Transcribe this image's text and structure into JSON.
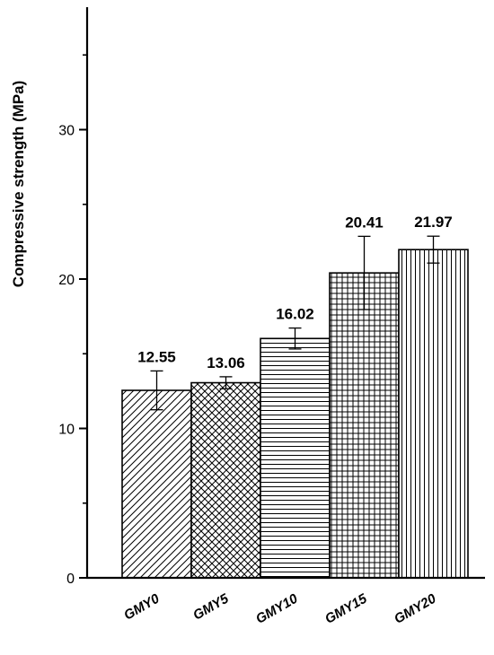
{
  "chart_data": {
    "type": "bar",
    "title": "",
    "xlabel": "",
    "ylabel": "Compressive strength (MPa)",
    "ylim": [
      0,
      38
    ],
    "yticks": [
      0,
      10,
      20,
      30
    ],
    "minor_yticks": [
      5,
      15,
      25,
      35
    ],
    "grid": false,
    "legend": "none",
    "categories": [
      "GMY0",
      "GMY5",
      "GMY10",
      "GMY15",
      "GMY20"
    ],
    "values": [
      12.55,
      13.06,
      16.02,
      20.41,
      21.97
    ],
    "value_labels": [
      "12.55",
      "13.06",
      "16.02",
      "20.41",
      "21.97"
    ],
    "errors": [
      1.3,
      0.4,
      0.7,
      2.45,
      0.9
    ],
    "patterns": [
      "diagonal-hatch",
      "cross-hatch",
      "horizontal-lines",
      "grid",
      "vertical-lines"
    ],
    "colors": {
      "bar_fill": "#ffffff",
      "bar_stroke": "#000000",
      "pattern": "#000000"
    }
  }
}
